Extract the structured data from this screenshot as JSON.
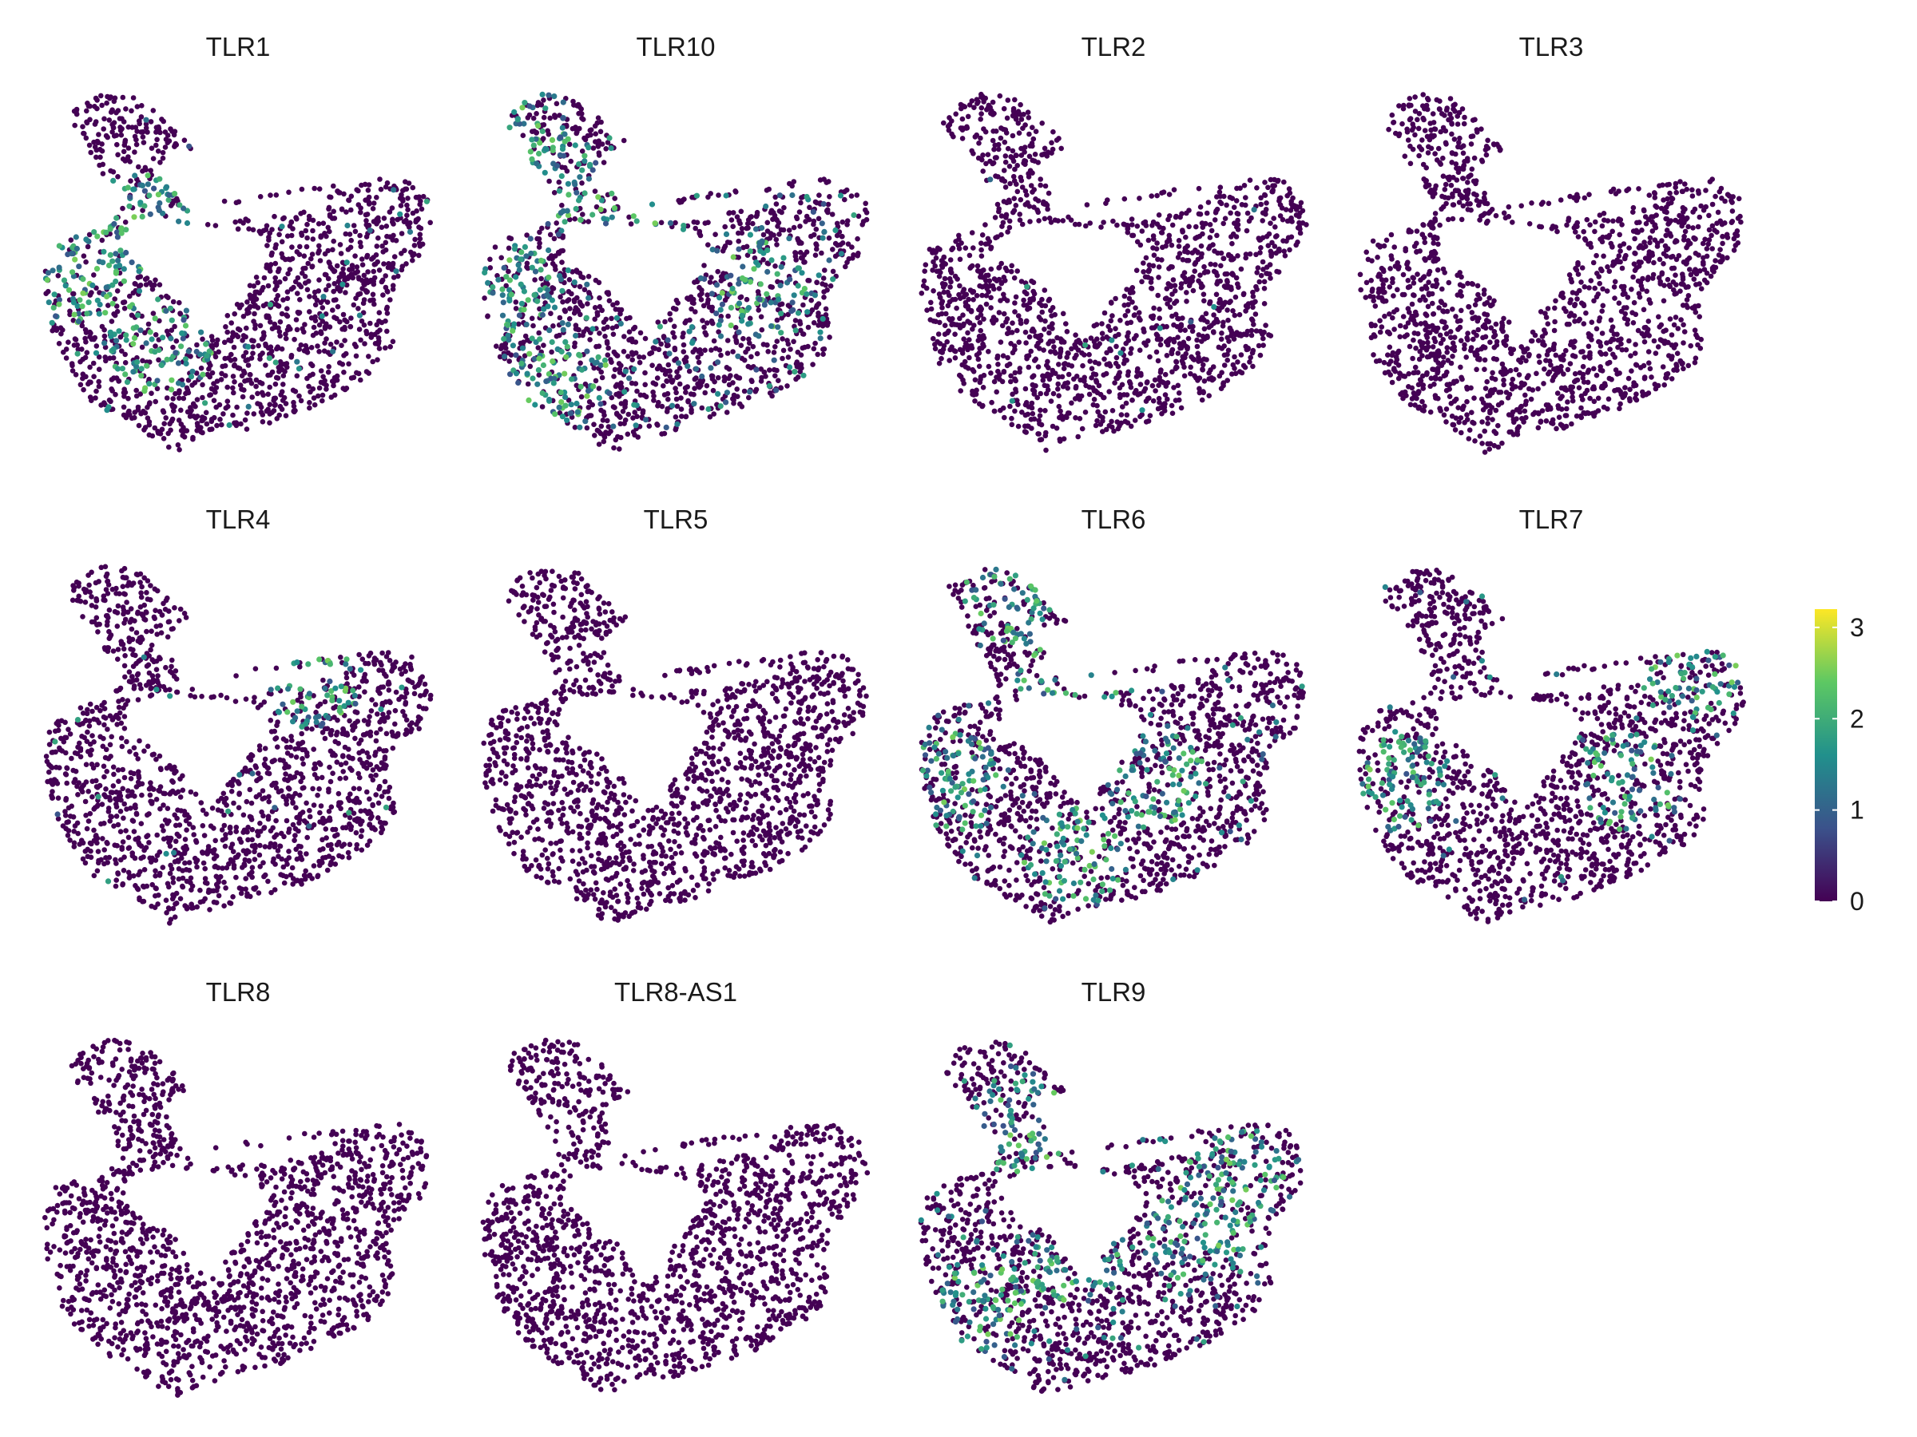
{
  "chart_data": {
    "type": "scatter",
    "subtype": "umap-feature-plot",
    "grid": false,
    "axes_visible": false,
    "point_count_per_panel": "approx. several thousand cells",
    "panels": [
      {
        "title": "TLR1",
        "level": 0.1,
        "hotspots": [
          [
            0.06,
            0.52
          ],
          [
            0.12,
            0.45
          ],
          [
            0.3,
            0.7
          ],
          [
            0.25,
            0.36
          ]
        ]
      },
      {
        "title": "TLR10",
        "level": 0.28,
        "hotspots": [
          [
            0.1,
            0.1
          ],
          [
            0.18,
            0.25
          ],
          [
            0.05,
            0.55
          ],
          [
            0.4,
            0.4
          ],
          [
            0.7,
            0.55
          ],
          [
            0.2,
            0.8
          ]
        ]
      },
      {
        "title": "TLR2",
        "level": 0.02,
        "hotspots": []
      },
      {
        "title": "TLR3",
        "level": 0.0,
        "hotspots": []
      },
      {
        "title": "TLR4",
        "level": 0.02,
        "hotspots": [
          [
            0.68,
            0.32
          ]
        ]
      },
      {
        "title": "TLR5",
        "level": 0.0,
        "hotspots": []
      },
      {
        "title": "TLR6",
        "level": 0.12,
        "hotspots": [
          [
            0.25,
            0.1
          ],
          [
            0.38,
            0.35
          ],
          [
            0.1,
            0.6
          ],
          [
            0.4,
            0.8
          ],
          [
            0.6,
            0.6
          ]
        ]
      },
      {
        "title": "TLR7",
        "level": 0.07,
        "hotspots": [
          [
            0.7,
            0.6
          ],
          [
            0.85,
            0.3
          ],
          [
            0.1,
            0.6
          ]
        ]
      },
      {
        "title": "TLR8",
        "level": 0.0,
        "hotspots": []
      },
      {
        "title": "TLR8-AS1",
        "level": 0.0,
        "hotspots": []
      },
      {
        "title": "TLR9",
        "level": 0.22,
        "hotspots": [
          [
            0.7,
            0.55
          ],
          [
            0.8,
            0.4
          ],
          [
            0.15,
            0.75
          ],
          [
            0.4,
            0.6
          ],
          [
            0.25,
            0.25
          ]
        ]
      }
    ],
    "colorbar": {
      "ticks": [
        "0",
        "1",
        "2",
        "3"
      ],
      "tick_values": [
        0,
        1,
        2,
        3
      ],
      "range": [
        0,
        3.2
      ],
      "colormap": "viridis",
      "colors": [
        "#440154",
        "#3b528b",
        "#21908c",
        "#5dc863",
        "#fde725"
      ]
    }
  }
}
